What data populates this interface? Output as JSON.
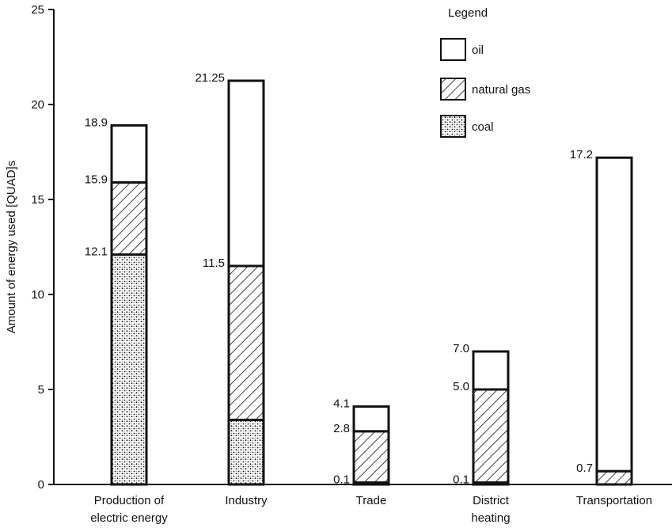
{
  "chart_data": {
    "type": "bar",
    "stacked": true,
    "ylabel": "Amount of energy used [QUAD]s",
    "ylim": [
      0,
      25
    ],
    "yticks": [
      "0",
      "5",
      "10",
      "15",
      "20",
      "25"
    ],
    "categories": [
      [
        "Production of",
        "electric energy"
      ],
      [
        "Industry"
      ],
      [
        "Trade"
      ],
      [
        "District",
        "heating"
      ],
      [
        "Transportation"
      ]
    ],
    "series": [
      {
        "name": "coal",
        "values": [
          12.1,
          3.4,
          0.1,
          0.1,
          0.0
        ]
      },
      {
        "name": "natural gas",
        "values": [
          3.8,
          8.1,
          2.7,
          4.9,
          0.7
        ]
      },
      {
        "name": "oil",
        "values": [
          3.0,
          9.75,
          1.3,
          2.0,
          16.5
        ]
      }
    ],
    "data_labels": [
      [
        "18.9",
        "15.9",
        "12.1"
      ],
      [
        "21.25",
        "11.5"
      ],
      [
        "4.1",
        "2.8",
        "0.1"
      ],
      [
        "7.0",
        "5.0",
        "0.1"
      ],
      [
        "17.2",
        "0.7"
      ]
    ],
    "legend": {
      "title": "Legend",
      "position": "top-right",
      "entries": [
        "oil",
        "natural gas",
        "coal"
      ]
    },
    "grid": false
  }
}
